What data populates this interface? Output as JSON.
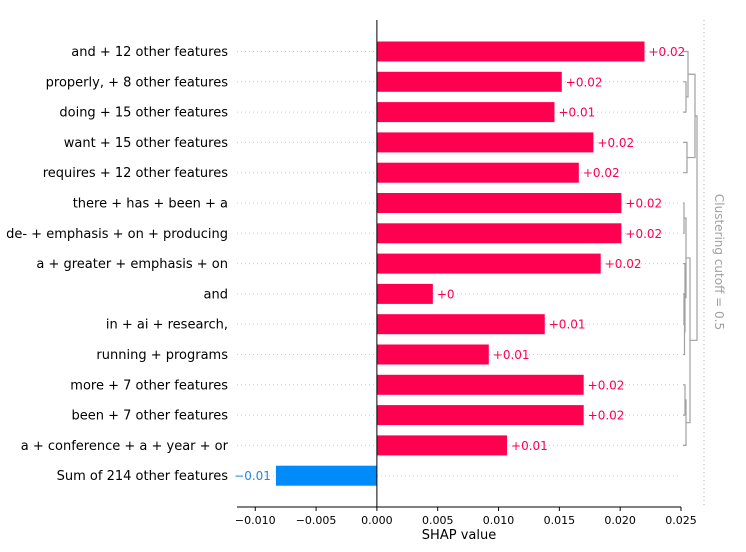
{
  "chart_data": {
    "type": "bar",
    "orientation": "horizontal",
    "xlabel": "SHAP value",
    "xlim": [
      -0.0115,
      0.025
    ],
    "xticks": [
      "−0.010",
      "−0.005",
      "0.000",
      "0.005",
      "0.010",
      "0.015",
      "0.020",
      "0.025"
    ],
    "xtick_values": [
      -0.01,
      -0.005,
      0,
      0.005,
      0.01,
      0.015,
      0.02,
      0.025
    ],
    "categories": [
      "and + 12 other features",
      "properly, + 8 other features",
      "doing + 15 other features",
      "want + 15 other features",
      "requires + 12 other features",
      "there + has + been + a",
      "de- + emphasis + on + producing",
      "a + greater + emphasis + on",
      "and",
      "in + ai + research,",
      "running + programs",
      "more + 7 other features",
      "been + 7 other features",
      "a + conference + a + year + or",
      "Sum of 214 other features"
    ],
    "values": [
      0.022,
      0.0152,
      0.0146,
      0.0178,
      0.0166,
      0.0201,
      0.0201,
      0.0184,
      0.0046,
      0.0138,
      0.0092,
      0.017,
      0.017,
      0.0107,
      -0.0083
    ],
    "data_labels": [
      "+0.02",
      "+0.02",
      "+0.01",
      "+0.02",
      "+0.02",
      "+0.02",
      "+0.02",
      "+0.02",
      "+0",
      "+0.01",
      "+0.01",
      "+0.02",
      "+0.02",
      "+0.01",
      "−0.01"
    ],
    "colors": {
      "positive": "#ff0051",
      "negative": "#008bfb",
      "positive_label": "#ff0051",
      "negative_label": "#1e88e5"
    },
    "dendrogram_label": "Clustering cutoff = 0.5",
    "grid": "horizontal dotted"
  }
}
